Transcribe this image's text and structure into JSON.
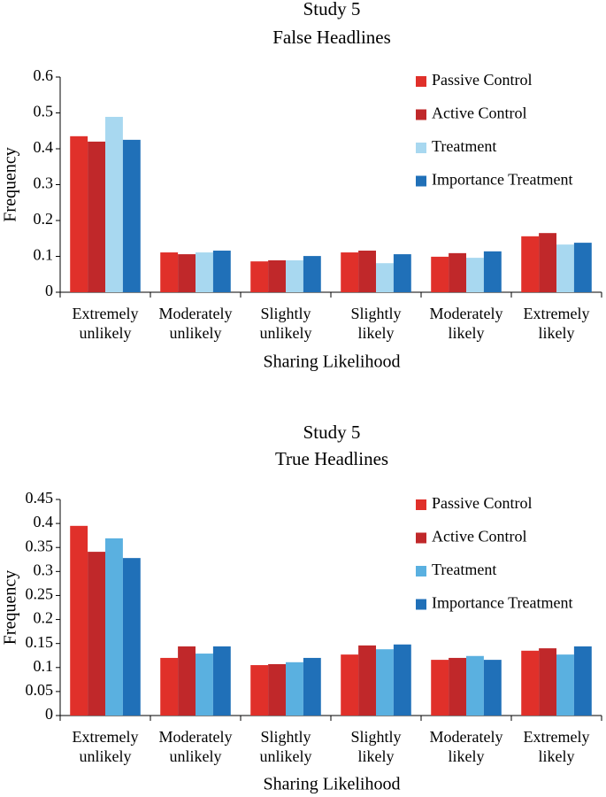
{
  "chart_data": [
    {
      "type": "bar",
      "title": "Study 5",
      "subtitle": "False Headlines",
      "xlabel": "Sharing Likelihood",
      "ylabel": "Frequency",
      "categories": [
        "Extremely unlikely",
        "Moderately unlikely",
        "Slightly unlikely",
        "Slightly likely",
        "Moderately likely",
        "Extremely likely"
      ],
      "series": [
        {
          "name": "Passive Control",
          "color": "#e0302a",
          "values": [
            0.435,
            0.111,
            0.086,
            0.111,
            0.099,
            0.156
          ]
        },
        {
          "name": "Active Control",
          "color": "#c0282a",
          "values": [
            0.42,
            0.106,
            0.089,
            0.116,
            0.109,
            0.165
          ]
        },
        {
          "name": "Treatment",
          "color": "#a8d8f0",
          "values": [
            0.489,
            0.111,
            0.089,
            0.081,
            0.096,
            0.133
          ]
        },
        {
          "name": "Importance Treatment",
          "color": "#2070b8",
          "values": [
            0.425,
            0.116,
            0.101,
            0.106,
            0.114,
            0.138
          ]
        }
      ],
      "ylim": [
        0,
        0.6
      ],
      "yticks": [
        0,
        0.1,
        0.2,
        0.3,
        0.4,
        0.5,
        0.6
      ],
      "legend": "upper right"
    },
    {
      "type": "bar",
      "title": "Study 5",
      "subtitle": "True Headlines",
      "xlabel": "Sharing Likelihood",
      "ylabel": "Frequency",
      "categories": [
        "Extremely unlikely",
        "Moderately unlikely",
        "Slightly unlikely",
        "Slightly likely",
        "Moderately likely",
        "Extremely likely"
      ],
      "series": [
        {
          "name": "Passive Control",
          "color": "#e0302a",
          "values": [
            0.395,
            0.12,
            0.105,
            0.127,
            0.116,
            0.135
          ]
        },
        {
          "name": "Active Control",
          "color": "#c0282a",
          "values": [
            0.341,
            0.144,
            0.107,
            0.146,
            0.12,
            0.14
          ]
        },
        {
          "name": "Treatment",
          "color": "#5ab0e0",
          "values": [
            0.369,
            0.129,
            0.111,
            0.138,
            0.124,
            0.127
          ]
        },
        {
          "name": "Importance Treatment",
          "color": "#2070b8",
          "values": [
            0.328,
            0.144,
            0.12,
            0.148,
            0.116,
            0.144
          ]
        }
      ],
      "ylim": [
        0,
        0.45
      ],
      "yticks": [
        0,
        0.05,
        0.1,
        0.15,
        0.2,
        0.25,
        0.3,
        0.35,
        0.4,
        0.45
      ],
      "legend": "upper right"
    }
  ]
}
